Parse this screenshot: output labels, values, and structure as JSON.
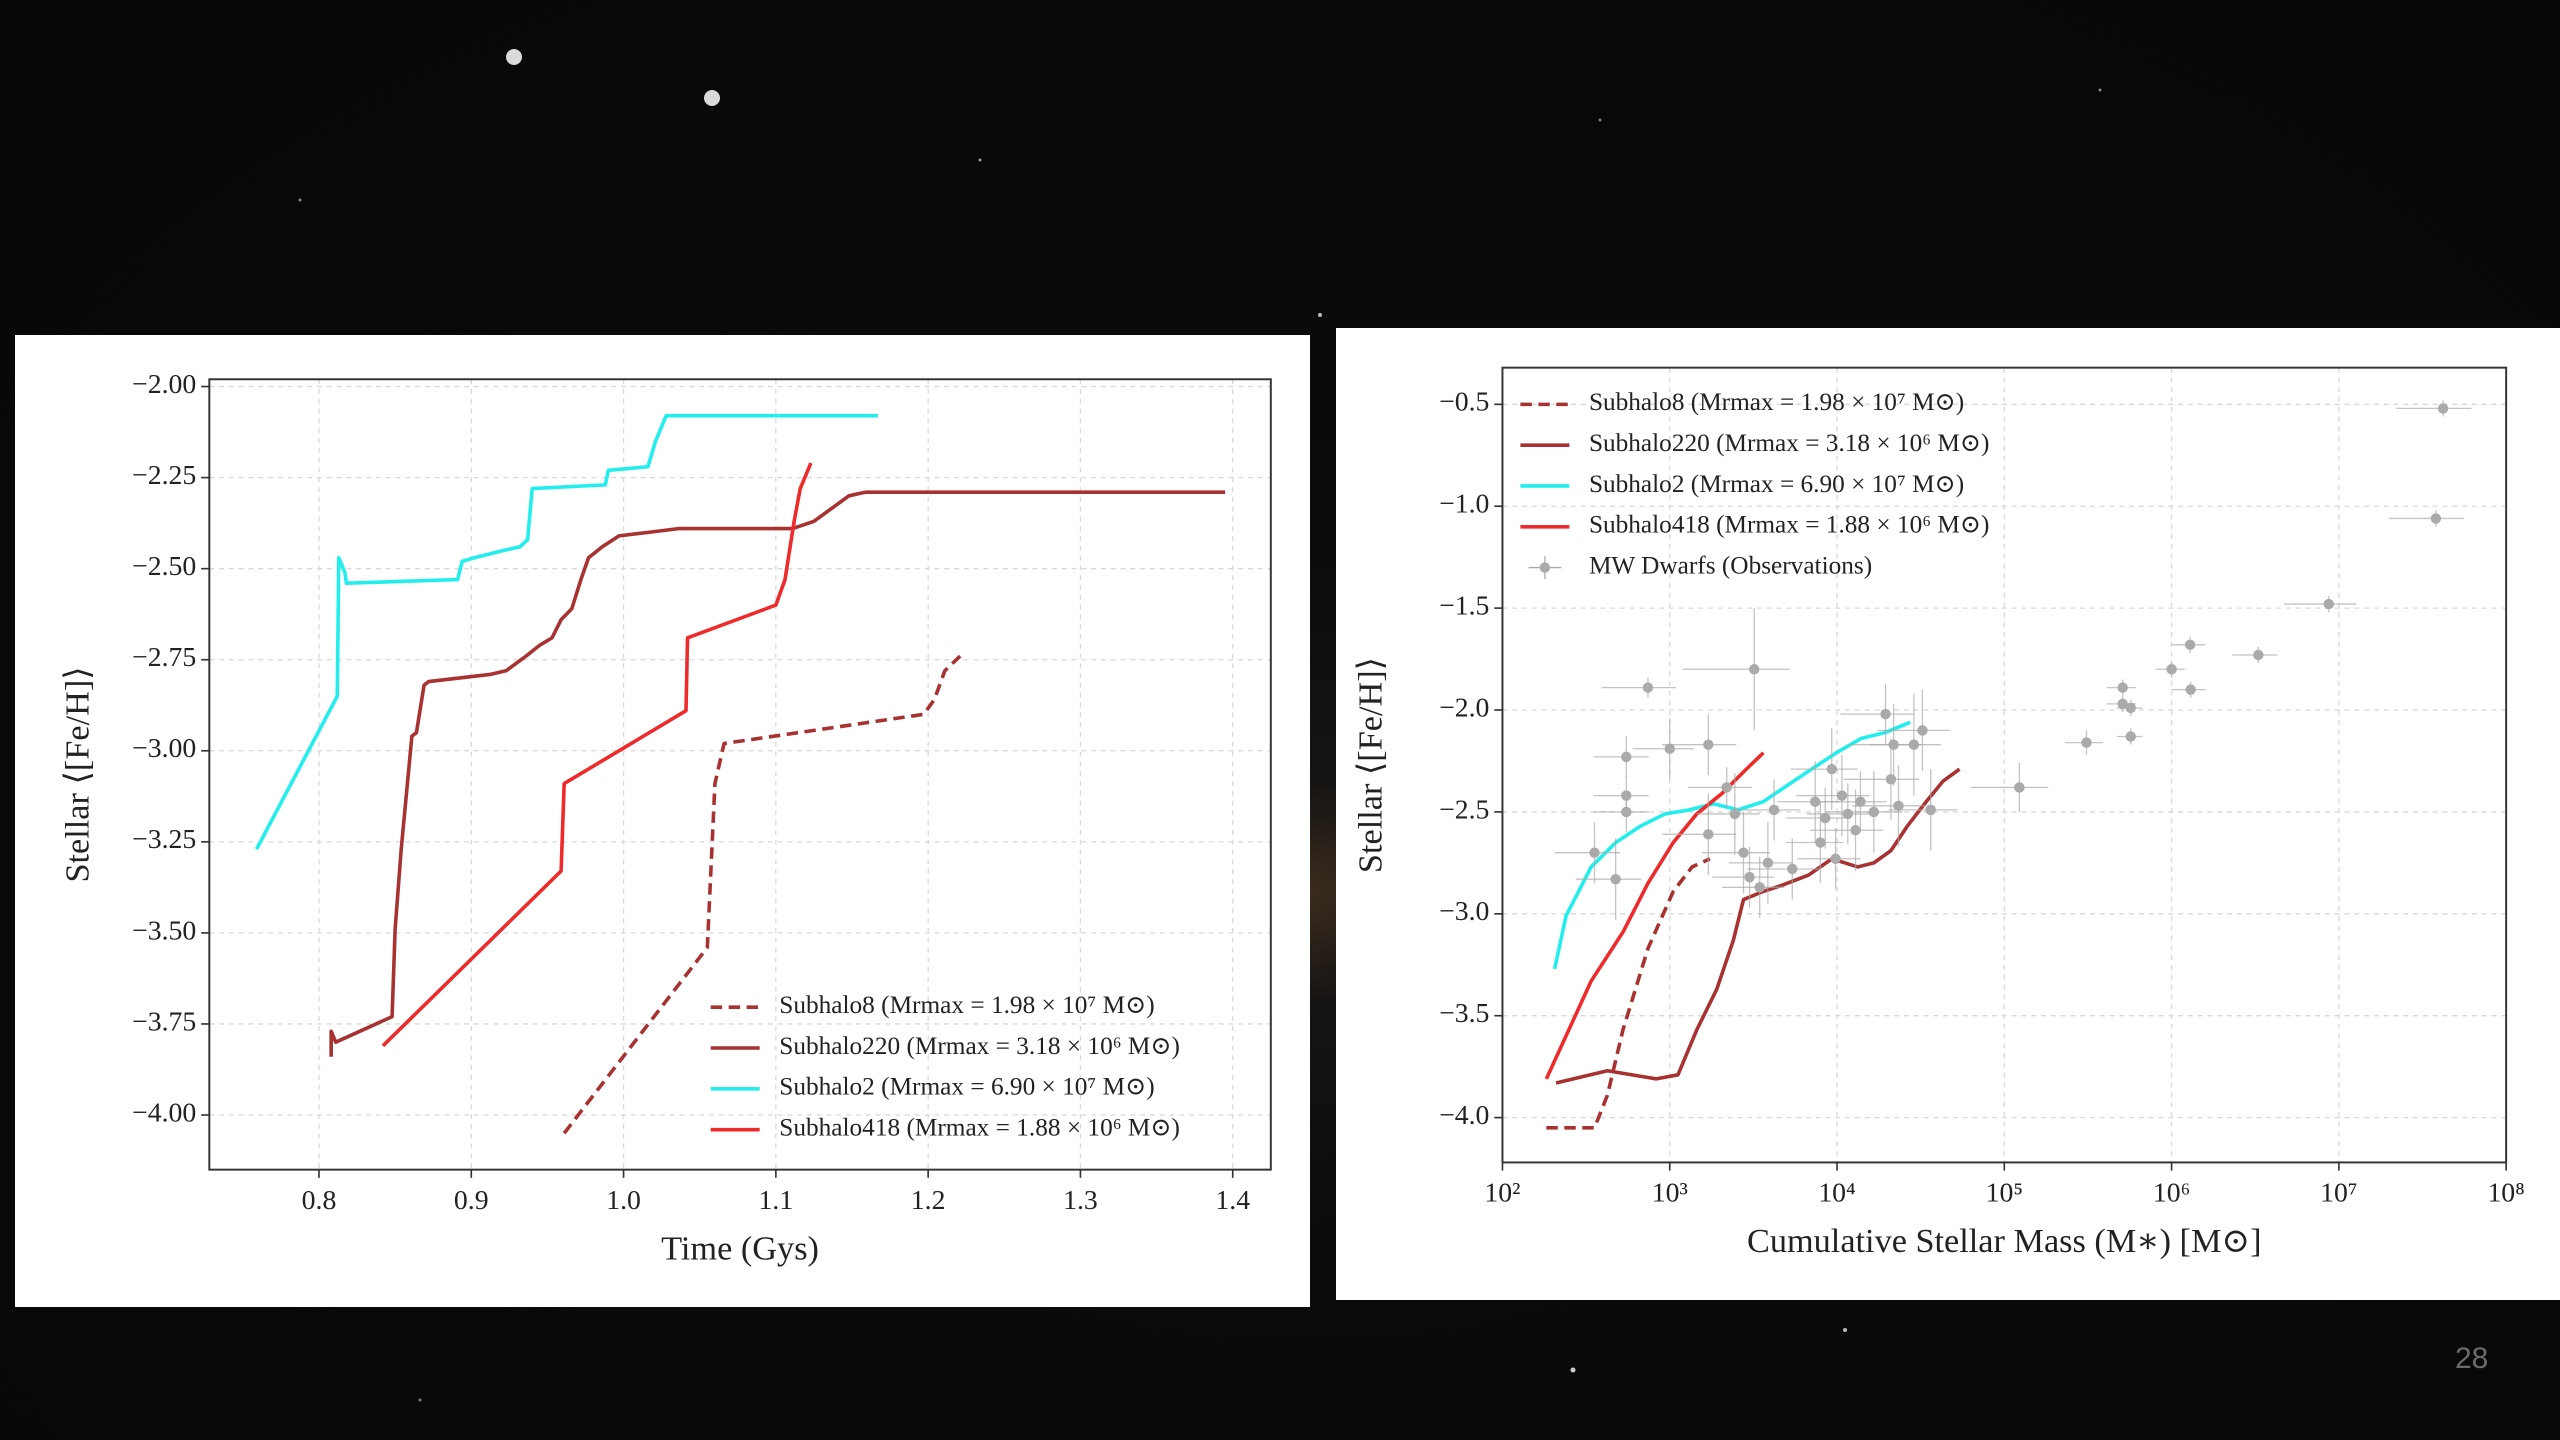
{
  "chart_data": [
    {
      "type": "line",
      "xlabel": "Time (Gys)",
      "ylabel": "Stellar ⟨[Fe/H]⟩",
      "xlim": [
        0.728,
        1.425
      ],
      "ylim": [
        -4.15,
        -1.98
      ],
      "xticks": [
        0.8,
        0.9,
        {
          "value": 1.0,
          "label": "1.0"
        },
        1.1,
        1.2,
        1.3,
        1.4
      ],
      "yticks": [
        {
          "value": -2.0,
          "label": "−2.00"
        },
        {
          "value": -2.25,
          "label": "−2.25"
        },
        {
          "value": -2.5,
          "label": "−2.50"
        },
        {
          "value": -2.75,
          "label": "−2.75"
        },
        {
          "value": -3.0,
          "label": "−3.00"
        },
        {
          "value": -3.25,
          "label": "−3.25"
        },
        {
          "value": -3.5,
          "label": "−3.50"
        },
        {
          "value": -3.75,
          "label": "−3.75"
        },
        {
          "value": -4.0,
          "label": "−4.00"
        }
      ],
      "grid": true,
      "legend": "lower right",
      "series": [
        {
          "name": "Subhalo8 (Mrmax = 1.98 × 10⁷ M⊙)",
          "color": "#a83232",
          "linestyle": "dashed",
          "x": [
            0.961,
            1.055,
            1.06,
            1.066,
            1.197,
            1.204,
            1.211,
            1.221
          ],
          "values": [
            -4.05,
            -3.54,
            -3.09,
            -2.98,
            -2.9,
            -2.86,
            -2.78,
            -2.74
          ]
        },
        {
          "name": "Subhalo220 (Mrmax = 3.18 × 10⁶ M⊙)",
          "color": "#a83232",
          "linestyle": "solid",
          "x": [
            0.808,
            0.808,
            0.811,
            0.848,
            0.85,
            0.854,
            0.861,
            0.864,
            0.869,
            0.872,
            0.913,
            0.923,
            0.936,
            0.945,
            0.953,
            0.959,
            0.966,
            0.972,
            0.977,
            0.986,
            0.997,
            1.017,
            1.036,
            1.111,
            1.125,
            1.148,
            1.159,
            1.395
          ],
          "values": [
            -3.84,
            -3.77,
            -3.8,
            -3.73,
            -3.49,
            -3.27,
            -2.96,
            -2.95,
            -2.82,
            -2.81,
            -2.79,
            -2.78,
            -2.74,
            -2.71,
            -2.69,
            -2.64,
            -2.61,
            -2.53,
            -2.47,
            -2.44,
            -2.41,
            -2.4,
            -2.39,
            -2.39,
            -2.37,
            -2.3,
            -2.29,
            -2.29
          ]
        },
        {
          "name": "Subhalo2 (Mrmax = 6.90 × 10⁷ M⊙)",
          "color": "#22eeee",
          "linestyle": "solid",
          "x": [
            0.759,
            0.812,
            0.813,
            0.817,
            0.818,
            0.891,
            0.894,
            0.902,
            0.921,
            0.932,
            0.937,
            0.94,
            0.988,
            0.99,
            1.016,
            1.021,
            1.027,
            1.028,
            1.167
          ],
          "values": [
            -3.27,
            -2.85,
            -2.47,
            -2.51,
            -2.54,
            -2.53,
            -2.48,
            -2.47,
            -2.45,
            -2.44,
            -2.42,
            -2.28,
            -2.27,
            -2.23,
            -2.22,
            -2.15,
            -2.09,
            -2.08,
            -2.08
          ]
        },
        {
          "name": "Subhalo418 (Mrmax = 1.88 × 10⁶ M⊙)",
          "color": "#ee2a2a",
          "linestyle": "solid",
          "x": [
            0.842,
            0.959,
            0.961,
            1.041,
            1.042,
            1.1,
            1.106,
            1.112,
            1.116,
            1.123
          ],
          "values": [
            -3.81,
            -3.33,
            -3.09,
            -2.89,
            -2.69,
            -2.6,
            -2.53,
            -2.37,
            -2.28,
            -2.21
          ]
        }
      ]
    },
    {
      "type": "line",
      "xlabel": "Cumulative Stellar Mass (M∗) [M⊙]",
      "ylabel": "Stellar ⟨[Fe/H]⟩",
      "xscale": "log",
      "xlim": [
        100,
        100000000
      ],
      "ylim": [
        -4.22,
        -0.32
      ],
      "xticks": [
        {
          "value": 100,
          "label": "10²"
        },
        {
          "value": 1000,
          "label": "10³"
        },
        {
          "value": 10000,
          "label": "10⁴"
        },
        {
          "value": 100000,
          "label": "10⁵"
        },
        {
          "value": 1000000,
          "label": "10⁶"
        },
        {
          "value": 10000000,
          "label": "10⁷"
        },
        {
          "value": 100000000,
          "label": "10⁸"
        }
      ],
      "yticks": [
        {
          "value": -0.5,
          "label": "−0.5"
        },
        {
          "value": -1.0,
          "label": "−1.0"
        },
        {
          "value": -1.5,
          "label": "−1.5"
        },
        {
          "value": -2.0,
          "label": "−2.0"
        },
        {
          "value": -2.5,
          "label": "−2.5"
        },
        {
          "value": -3.0,
          "label": "−3.0"
        },
        {
          "value": -3.5,
          "label": "−3.5"
        },
        {
          "value": -4.0,
          "label": "−4.0"
        }
      ],
      "grid": true,
      "legend": "upper left",
      "series": [
        {
          "name": "Subhalo8 (Mrmax = 1.98 × 10⁷ M⊙)",
          "color": "#a83232",
          "linestyle": "dashed",
          "x": [
            183,
            355,
            424,
            525,
            741,
            1050,
            1360,
            1740
          ],
          "values": [
            -4.05,
            -4.05,
            -3.89,
            -3.57,
            -3.17,
            -2.89,
            -2.77,
            -2.73
          ]
        },
        {
          "name": "Subhalo220 (Mrmax = 3.18 × 10⁶ M⊙)",
          "color": "#a83232",
          "linestyle": "solid",
          "x": [
            209,
            424,
            830,
            1120,
            1450,
            1910,
            2400,
            2760,
            3630,
            4680,
            6760,
            9330,
            13300,
            16600,
            21000,
            26300,
            34100,
            42900,
            54000
          ],
          "values": [
            -3.83,
            -3.77,
            -3.81,
            -3.79,
            -3.57,
            -3.37,
            -3.13,
            -2.93,
            -2.89,
            -2.86,
            -2.81,
            -2.73,
            -2.77,
            -2.75,
            -2.69,
            -2.57,
            -2.45,
            -2.35,
            -2.29
          ]
        },
        {
          "name": "Subhalo2 (Mrmax = 6.90 × 10⁷ M⊙)",
          "color": "#22eeee",
          "linestyle": "solid",
          "x": [
            205,
            240,
            339,
            476,
            668,
            937,
            1310,
            1830,
            2560,
            3620,
            5040,
            7050,
            9900,
            13900,
            19500,
            27400
          ],
          "values": [
            -3.27,
            -3.01,
            -2.77,
            -2.65,
            -2.57,
            -2.51,
            -2.49,
            -2.46,
            -2.49,
            -2.45,
            -2.37,
            -2.29,
            -2.21,
            -2.14,
            -2.11,
            -2.06
          ]
        },
        {
          "name": "Subhalo418 (Mrmax = 1.88 × 10⁶ M⊙)",
          "color": "#ee2a2a",
          "linestyle": "solid",
          "x": [
            183,
            339,
            525,
            741,
            1050,
            1450,
            2050,
            2870,
            3630
          ],
          "values": [
            -3.81,
            -3.33,
            -3.09,
            -2.85,
            -2.65,
            -2.51,
            -2.41,
            -2.29,
            -2.21
          ]
        },
        {
          "name": "MW Dwarfs (Observations)",
          "color": "#aaaaaa",
          "type": "scatter",
          "x": [
            42000000,
            38000000,
            8700000,
            3300000,
            1290000,
            1300000,
            1000000,
            510000,
            510000,
            570000,
            570000,
            310000,
            123000,
            741,
            3200,
            550,
            550,
            550,
            355,
            475,
            1000,
            1700,
            1700,
            2190,
            2450,
            2760,
            3000,
            3450,
            3860,
            4200,
            5400,
            7400,
            7950,
            8500,
            9300,
            9800,
            10700,
            11600,
            12900,
            13800,
            16600,
            19500,
            21000,
            21800,
            23300,
            28800,
            32400,
            36300
          ],
          "values": [
            -0.52,
            -1.06,
            -1.48,
            -1.73,
            -1.68,
            -1.9,
            -1.8,
            -1.89,
            -1.97,
            -1.99,
            -2.13,
            -2.16,
            -2.38,
            -1.89,
            -1.8,
            -2.23,
            -2.42,
            -2.5,
            -2.7,
            -2.83,
            -2.19,
            -2.17,
            -2.61,
            -2.38,
            -2.51,
            -2.7,
            -2.82,
            -2.87,
            -2.75,
            -2.49,
            -2.78,
            -2.45,
            -2.65,
            -2.53,
            -2.29,
            -2.73,
            -2.42,
            -2.51,
            -2.59,
            -2.45,
            -2.5,
            -2.02,
            -2.34,
            -2.17,
            -2.47,
            -2.17,
            -2.1,
            -2.49
          ],
          "xerr": [
            20000000,
            18000000,
            4000000,
            1000000,
            300000,
            300000,
            200000,
            100000,
            100000,
            100000,
            100000,
            80000,
            60000,
            350,
            2000,
            200,
            200,
            200,
            150,
            200,
            400,
            800,
            800,
            900,
            1000,
            1200,
            1200,
            1400,
            1600,
            1800,
            2500,
            3000,
            3000,
            3500,
            4000,
            4000,
            5000,
            5000,
            6000,
            6000,
            8000,
            9000,
            10000,
            10000,
            11000,
            13000,
            15000,
            16000
          ],
          "yerr": [
            0.04,
            0.04,
            0.04,
            0.04,
            0.04,
            0.04,
            0.04,
            0.04,
            0.04,
            0.04,
            0.04,
            0.06,
            0.12,
            0.05,
            0.3,
            0.1,
            0.1,
            0.1,
            0.15,
            0.2,
            0.15,
            0.15,
            0.2,
            0.1,
            0.2,
            0.2,
            0.15,
            0.15,
            0.2,
            0.15,
            0.15,
            0.2,
            0.2,
            0.15,
            0.2,
            0.15,
            0.2,
            0.15,
            0.2,
            0.15,
            0.2,
            0.15,
            0.2,
            0.2,
            0.2,
            0.25,
            0.2,
            0.2
          ]
        }
      ]
    }
  ],
  "page_number": 28
}
